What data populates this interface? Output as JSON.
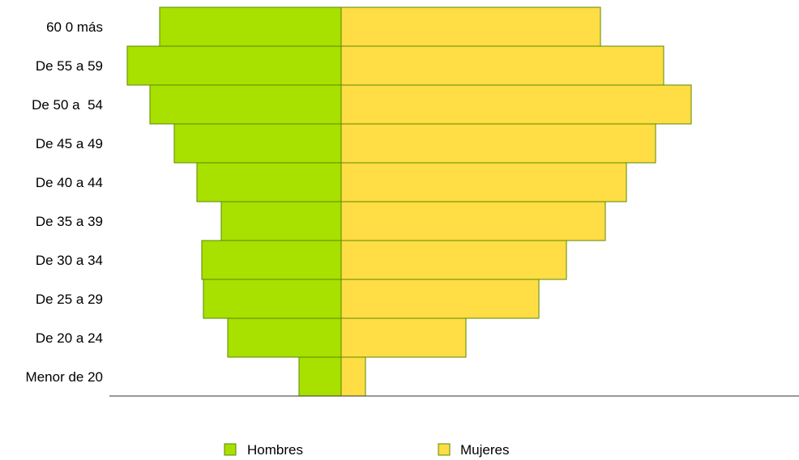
{
  "chart_data": {
    "type": "bar",
    "orientation": "horizontal",
    "subtype": "population-pyramid",
    "categories": [
      "Menor de 20",
      "De 20 a 24",
      "De 25 a 29",
      "De 30 a 34",
      "De 35 a 39",
      "De 40 a 44",
      "De 45 a 49",
      "De 50 a  54",
      "De 55 a 59",
      "60 0 más"
    ],
    "series": [
      {
        "name": "Hombres",
        "color": "#A8E000",
        "side": "left",
        "values": [
          52,
          140,
          170,
          172,
          148,
          178,
          206,
          236,
          264,
          224
        ]
      },
      {
        "name": "Mujeres",
        "color": "#FFDD44",
        "side": "right",
        "values": [
          30,
          154,
          244,
          278,
          326,
          352,
          388,
          432,
          398,
          320
        ]
      }
    ],
    "xlim": [
      -300,
      580
    ],
    "grid": false,
    "legend_position": "bottom"
  }
}
